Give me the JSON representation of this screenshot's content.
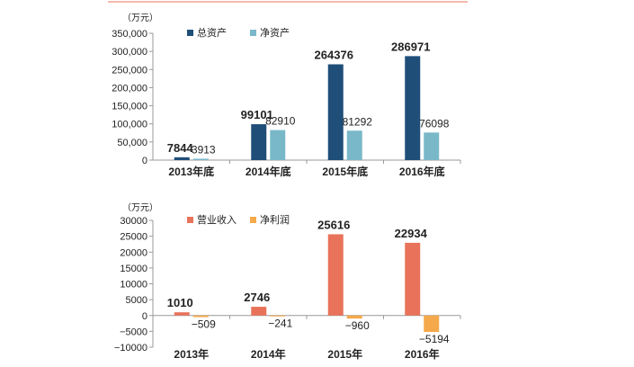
{
  "chart_data": [
    {
      "type": "bar",
      "unit_label": "（万元）",
      "categories": [
        "2013年底",
        "2014年底",
        "2015年底",
        "2016年底"
      ],
      "series": [
        {
          "name": "总资产",
          "values": [
            7844,
            99101,
            264376,
            286971
          ],
          "color": "#1f4e79"
        },
        {
          "name": "净资产",
          "values": [
            3913,
            82910,
            81292,
            76098
          ],
          "color": "#79b8c9"
        }
      ],
      "yticks": [
        0,
        50000,
        100000,
        150000,
        200000,
        250000,
        300000,
        350000
      ],
      "ytick_labels": [
        "0",
        "50,000",
        "100,000",
        "150,000",
        "200,000",
        "250,000",
        "300,000",
        "350,000"
      ],
      "ylim": [
        0,
        350000
      ],
      "legend_position": "top-left",
      "grid": false
    },
    {
      "type": "bar",
      "unit_label": "（万元）",
      "categories": [
        "2013年",
        "2014年",
        "2015年",
        "2016年"
      ],
      "series": [
        {
          "name": "营业收入",
          "values": [
            1010,
            2746,
            25616,
            22934
          ],
          "color": "#e8735a"
        },
        {
          "name": "净利润",
          "values": [
            -509,
            -241,
            -960,
            -5194
          ],
          "color": "#f5a94a"
        }
      ],
      "yticks": [
        -10000,
        -5000,
        0,
        5000,
        10000,
        15000,
        20000,
        25000,
        30000
      ],
      "ytick_labels": [
        "−10000",
        "−5000",
        "0",
        "5000",
        "10000",
        "15000",
        "20000",
        "25000",
        "30000"
      ],
      "ylim": [
        -10000,
        30000
      ],
      "legend_position": "top-left",
      "grid": false
    }
  ],
  "colors": {
    "accent_line": "#e8735a",
    "axis": "#999999",
    "text": "#222222"
  }
}
